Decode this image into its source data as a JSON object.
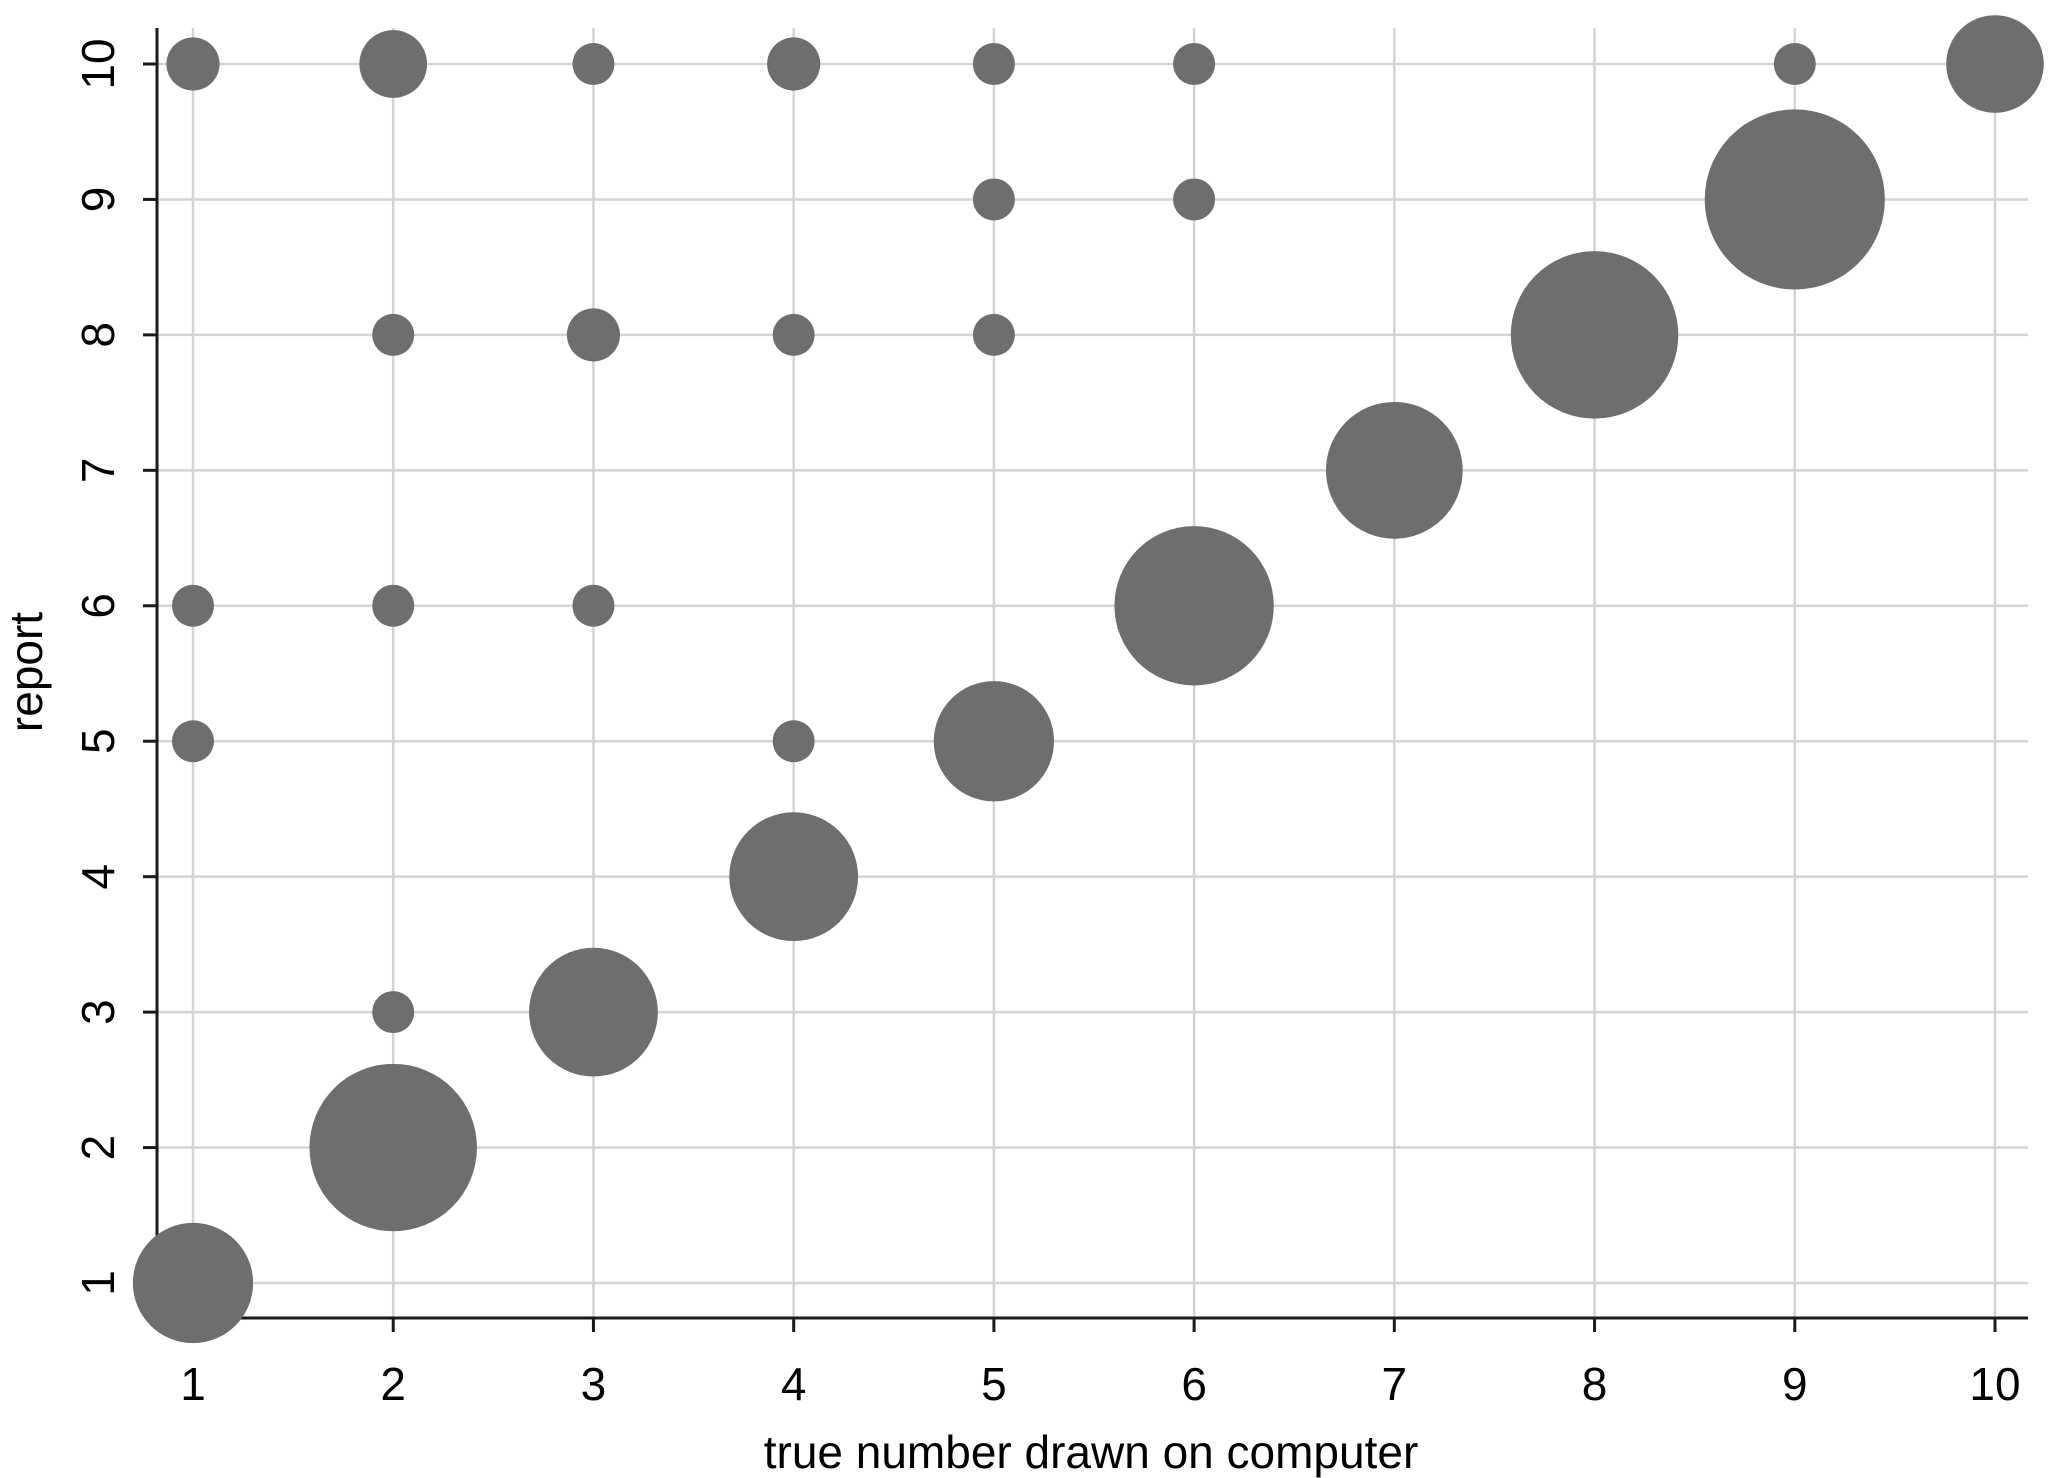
{
  "chart_data": {
    "type": "scatter",
    "subtype": "bubble",
    "title": "",
    "xlabel": "true number drawn on computer",
    "ylabel": "report",
    "xlim": [
      1,
      10
    ],
    "ylim": [
      1,
      10
    ],
    "x_ticks": [
      "1",
      "2",
      "3",
      "4",
      "5",
      "6",
      "7",
      "8",
      "9",
      "10"
    ],
    "y_ticks": [
      "1",
      "2",
      "3",
      "4",
      "5",
      "6",
      "7",
      "8",
      "9",
      "10"
    ],
    "grid": true,
    "legend": "none",
    "marker_color": "#6e6e6e",
    "grid_color": "#d4d4d4",
    "axis_color": "#1a1a1a",
    "points": [
      {
        "x": 1,
        "y": 10,
        "size": 1.6
      },
      {
        "x": 2,
        "y": 10,
        "size": 2.6
      },
      {
        "x": 3,
        "y": 10,
        "size": 1
      },
      {
        "x": 4,
        "y": 10,
        "size": 1.6
      },
      {
        "x": 5,
        "y": 10,
        "size": 1
      },
      {
        "x": 6,
        "y": 10,
        "size": 1
      },
      {
        "x": 9,
        "y": 10,
        "size": 1
      },
      {
        "x": 10,
        "y": 10,
        "size": 5.4
      },
      {
        "x": 5,
        "y": 9,
        "size": 1
      },
      {
        "x": 6,
        "y": 9,
        "size": 1
      },
      {
        "x": 9,
        "y": 9,
        "size": 18.4
      },
      {
        "x": 2,
        "y": 8,
        "size": 1
      },
      {
        "x": 3,
        "y": 8,
        "size": 1.6
      },
      {
        "x": 4,
        "y": 8,
        "size": 1
      },
      {
        "x": 5,
        "y": 8,
        "size": 1
      },
      {
        "x": 8,
        "y": 8,
        "size": 15.9
      },
      {
        "x": 7,
        "y": 7,
        "size": 10.6
      },
      {
        "x": 1,
        "y": 6,
        "size": 1
      },
      {
        "x": 2,
        "y": 6,
        "size": 1
      },
      {
        "x": 3,
        "y": 6,
        "size": 1
      },
      {
        "x": 6,
        "y": 6,
        "size": 14.4
      },
      {
        "x": 1,
        "y": 5,
        "size": 1
      },
      {
        "x": 4,
        "y": 5,
        "size": 1
      },
      {
        "x": 5,
        "y": 5,
        "size": 8.2
      },
      {
        "x": 4,
        "y": 4,
        "size": 9.4
      },
      {
        "x": 2,
        "y": 3,
        "size": 1
      },
      {
        "x": 3,
        "y": 3,
        "size": 9.4
      },
      {
        "x": 2,
        "y": 2,
        "size": 15.9
      },
      {
        "x": 1,
        "y": 1,
        "size": 8.2
      }
    ]
  }
}
